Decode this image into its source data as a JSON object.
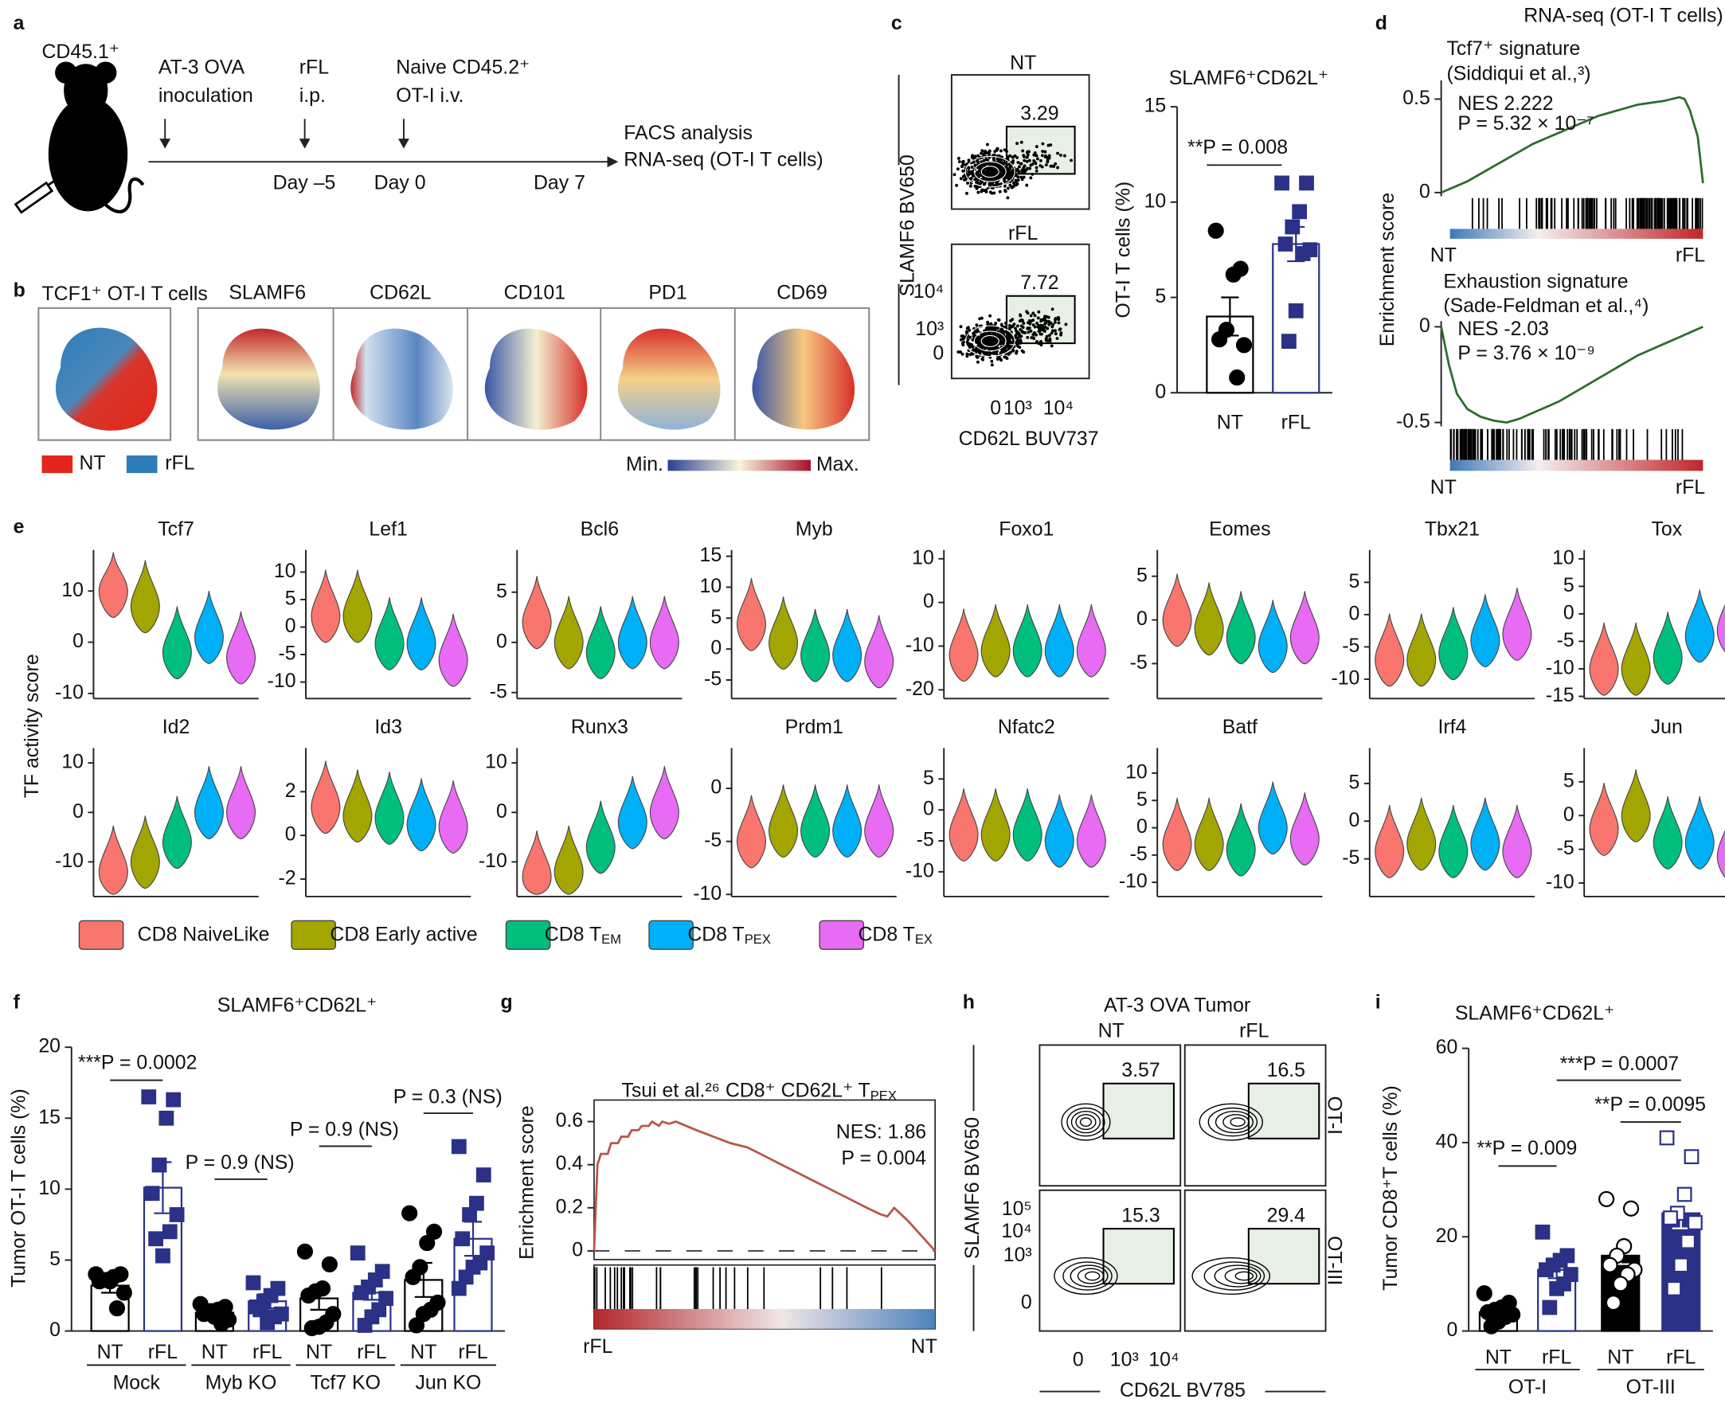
{
  "figure": {
    "panel_labels": [
      "a",
      "b",
      "c",
      "d",
      "e",
      "f",
      "g",
      "h",
      "i"
    ],
    "schematic": {
      "mouse": "CD45.1⁺",
      "steps": [
        [
          "AT-3 OVA",
          "inoculation"
        ],
        [
          "rFL",
          "i.p."
        ],
        [
          "Naive CD45.2⁺",
          "OT-I i.v."
        ]
      ],
      "days": [
        "Day –5",
        "Day 0",
        "Day 7"
      ],
      "readout": [
        "FACS analysis",
        "RNA-seq (OT-I T cells)"
      ]
    },
    "umap": {
      "title": "TCF1⁺ OT-I T cells",
      "markers": [
        "SLAMF6",
        "CD62L",
        "CD101",
        "PD1",
        "CD69"
      ],
      "legend": [
        {
          "name": "NT",
          "color": "#e3261c"
        },
        {
          "name": "rFL",
          "color": "#2f7db8"
        }
      ],
      "scale": [
        "Min.",
        "Max."
      ]
    },
    "flow_c": {
      "conditions": [
        "NT",
        "rFL"
      ],
      "gates": [
        3.29,
        7.72
      ],
      "ylabel": "SLAMF6 BV650",
      "xlabel": "CD62L BUV737",
      "yticks": [
        "10⁴",
        "10³",
        "0"
      ],
      "xticks": [
        "0",
        "10³",
        "10⁴"
      ]
    },
    "gsea_d": {
      "title": "RNA-seq (OT-I T cells)",
      "ylabel": "Enrichment score"
    },
    "flow_h": {
      "title": "AT-3 OVA Tumor",
      "conditions": [
        "NT",
        "rFL"
      ],
      "rows": [
        "OT-I",
        "OT-III"
      ],
      "gates": [
        [
          3.57,
          16.5
        ],
        [
          15.3,
          29.4
        ]
      ],
      "ylabel": "SLAMF6 BV650",
      "xlabel": "CD62L BV785",
      "yticks": [
        "10⁵",
        "10⁴",
        "10³",
        "0"
      ],
      "xticks": [
        "0",
        "10³",
        "10⁴"
      ]
    }
  },
  "chart_data": [
    {
      "type": "bar",
      "title": "SLAMF6⁺CD62L⁺",
      "ylabel": "OT-I T cells (%)",
      "categories": [
        "NT",
        "rFL"
      ],
      "values": [
        4,
        7.8
      ],
      "errors": [
        1,
        0.9
      ],
      "points": [
        [
          8.5,
          6.5,
          6.2,
          3.3,
          2.8,
          2.5,
          0.8
        ],
        [
          11,
          11,
          9.5,
          8.7,
          7.8,
          7.5,
          7.3,
          4.3,
          2.7
        ]
      ],
      "bar_colors": [
        "#ffffff",
        "#ffffff"
      ],
      "edge_colors": [
        "#000000",
        "#2b3187"
      ],
      "point_colors": [
        "#000000",
        "#2b3187"
      ],
      "markers": [
        "circle",
        "square"
      ],
      "annotations": [
        "**P = 0.008"
      ],
      "ylim": [
        0,
        15
      ],
      "yticks": [
        0,
        5,
        10,
        15
      ]
    },
    {
      "type": "line",
      "subtitle": [
        "Tcf7⁺ signature",
        "(Siddiqui et al.,³)"
      ],
      "stats": [
        "NES 2.222",
        "P = 5.32 × 10⁻⁷"
      ],
      "x": [
        0,
        5,
        10,
        15,
        20,
        25,
        30,
        35,
        40,
        45,
        50,
        55,
        60,
        65,
        70,
        75,
        80,
        85,
        88,
        91,
        93,
        95,
        98,
        100
      ],
      "values": [
        0,
        0.03,
        0.06,
        0.1,
        0.14,
        0.18,
        0.22,
        0.26,
        0.29,
        0.32,
        0.35,
        0.38,
        0.41,
        0.43,
        0.45,
        0.47,
        0.48,
        0.49,
        0.5,
        0.51,
        0.5,
        0.44,
        0.3,
        0.05
      ],
      "color": "#2e6b2e",
      "xlim": [
        0,
        100
      ],
      "ylim": [
        -0.02,
        0.6
      ],
      "yticks": [
        0,
        0.5
      ],
      "x_labels": [
        "NT",
        "rFL"
      ]
    },
    {
      "type": "line",
      "subtitle": [
        "Exhaustion signature",
        "(Sade-Feldman et al.,⁴)"
      ],
      "stats": [
        "NES -2.03",
        "P = 3.76 × 10⁻⁹"
      ],
      "x": [
        0,
        3,
        6,
        10,
        15,
        20,
        25,
        30,
        35,
        40,
        45,
        50,
        55,
        60,
        65,
        70,
        75,
        80,
        85,
        90,
        95,
        100
      ],
      "values": [
        0,
        -0.2,
        -0.35,
        -0.43,
        -0.47,
        -0.49,
        -0.5,
        -0.48,
        -0.45,
        -0.42,
        -0.39,
        -0.35,
        -0.31,
        -0.27,
        -0.23,
        -0.19,
        -0.15,
        -0.12,
        -0.09,
        -0.06,
        -0.03,
        0
      ],
      "color": "#2e6b2e",
      "xlim": [
        0,
        100
      ],
      "ylim": [
        -0.52,
        0.03
      ],
      "yticks": [
        -0.5,
        0
      ],
      "x_labels": [
        "NT",
        "rFL"
      ]
    },
    {
      "type": "violin",
      "ylabel": "TF activity score",
      "categories": [
        {
          "text": "CD8 NaiveLike"
        },
        {
          "text": "CD8 Early active"
        },
        {
          "text": "CD8 T",
          "sub": "EM"
        },
        {
          "text": "CD8 T",
          "sub": "PEX"
        },
        {
          "text": "CD8 T",
          "sub": "EX"
        }
      ],
      "colors": [
        "#f8766d",
        "#a3a500",
        "#00bf7d",
        "#00b0f6",
        "#e76bf3"
      ],
      "panels": [
        {
          "title": "Tcf7",
          "ylim": [
            -11,
            18
          ],
          "yticks": [
            -10,
            0,
            10
          ],
          "values": [
            10,
            7,
            -2,
            1,
            -3
          ]
        },
        {
          "title": "Lef1",
          "ylim": [
            -13,
            14
          ],
          "yticks": [
            -10,
            -5,
            0,
            5,
            10
          ],
          "values": [
            2,
            2,
            -3,
            -3,
            -6
          ]
        },
        {
          "title": "Bcl6",
          "ylim": [
            -5.6,
            9.2
          ],
          "yticks": [
            -5,
            0,
            5
          ],
          "values": [
            2,
            0,
            -1,
            0,
            0
          ]
        },
        {
          "title": "Myb",
          "ylim": [
            -8,
            16
          ],
          "yticks": [
            -5,
            0,
            5,
            10,
            15
          ],
          "values": [
            4,
            1,
            -1,
            -1,
            -2
          ]
        },
        {
          "title": "Foxo1",
          "ylim": [
            -22,
            12
          ],
          "yticks": [
            -20,
            -10,
            0,
            10
          ],
          "values": [
            -12,
            -11,
            -11,
            -11,
            -11
          ]
        },
        {
          "title": "Eomes",
          "ylim": [
            -9,
            8
          ],
          "yticks": [
            -5,
            0,
            5
          ],
          "values": [
            0,
            -1,
            -2,
            -3,
            -2
          ]
        },
        {
          "title": "Tbx21",
          "ylim": [
            -13,
            10
          ],
          "yticks": [
            -10,
            -5,
            0,
            5
          ],
          "values": [
            -7,
            -7,
            -6,
            -4,
            -3
          ]
        },
        {
          "title": "Tox",
          "ylim": [
            -15.4,
            11.6
          ],
          "yticks": [
            -15,
            -10,
            -5,
            0,
            5,
            10
          ],
          "values": [
            -10,
            -10,
            -8,
            -4,
            -3
          ]
        },
        {
          "title": "Id2",
          "ylim": [
            -17,
            13
          ],
          "yticks": [
            -10,
            0,
            10
          ],
          "values": [
            -12,
            -10,
            -6,
            0,
            0
          ]
        },
        {
          "title": "Id3",
          "ylim": [
            -2.8,
            4
          ],
          "yticks": [
            -2,
            0,
            2
          ],
          "values": [
            1.3,
            0.9,
            0.8,
            0.5,
            0.4
          ]
        },
        {
          "title": "Runx3",
          "ylim": [
            -17,
            13
          ],
          "yticks": [
            -10,
            0,
            10
          ],
          "values": [
            -13,
            -12,
            -7,
            -2,
            0
          ]
        },
        {
          "title": "Prdm1",
          "ylim": [
            -10.2,
            3.8
          ],
          "yticks": [
            -10,
            -5,
            0
          ],
          "values": [
            -5,
            -4,
            -4,
            -4,
            -4
          ]
        },
        {
          "title": "Nfatc2",
          "ylim": [
            -14,
            10
          ],
          "yticks": [
            -10,
            -5,
            0,
            5
          ],
          "values": [
            -4,
            -4,
            -4,
            -5,
            -5
          ]
        },
        {
          "title": "Batf",
          "ylim": [
            -12.6,
            14.6
          ],
          "yticks": [
            -10,
            -5,
            0,
            5,
            10
          ],
          "values": [
            -3,
            -3,
            -4,
            0,
            -2
          ]
        },
        {
          "title": "Irf4",
          "ylim": [
            -10,
            9.7
          ],
          "yticks": [
            -5,
            0,
            5
          ],
          "values": [
            -4,
            -3,
            -4,
            -3,
            -4
          ]
        },
        {
          "title": "Jun",
          "ylim": [
            -12,
            10
          ],
          "yticks": [
            -10,
            -5,
            0,
            5
          ],
          "values": [
            -2,
            0,
            -4,
            -4,
            -6
          ]
        }
      ]
    },
    {
      "type": "bar",
      "title": "SLAMF6⁺CD62L⁺",
      "ylabel": "Tumor OT-I T cells (%)",
      "categories": [
        "NT",
        "rFL",
        "NT",
        "rFL",
        "NT",
        "rFL",
        "NT",
        "rFL"
      ],
      "groups": [
        "Mock",
        "Myb KO",
        "Tcf7 KO",
        "Jun KO"
      ],
      "values": [
        3.2,
        10.1,
        1.3,
        2.1,
        2.3,
        2.7,
        3.6,
        6.5
      ],
      "errors": [
        0.5,
        1.8,
        0.3,
        0.5,
        0.8,
        0.5,
        1.2,
        1.2
      ],
      "points": [
        [
          4,
          4,
          3.8,
          3.6,
          3.5,
          2.7,
          1.6,
          3.5
        ],
        [
          16.5,
          16.3,
          15,
          11.7,
          9.7,
          8.2,
          7,
          5.3,
          6.5
        ],
        [
          1.9,
          1.7,
          1.5,
          1.4,
          1.2,
          0.8,
          0.5,
          1
        ],
        [
          3.4,
          3,
          2.5,
          2.1,
          1.7,
          1.2,
          1,
          0.6,
          1.5
        ],
        [
          5.6,
          4.7,
          3,
          2.8,
          2.5,
          1.2,
          0.6,
          0.3,
          0.2
        ],
        [
          5.5,
          4.2,
          3.6,
          3.1,
          2.7,
          2.3,
          1.5,
          1,
          0.4
        ],
        [
          8.3,
          7,
          6.2,
          4.5,
          3.8,
          2,
          1.5,
          1.2,
          0.4
        ],
        [
          13,
          11,
          9,
          8.2,
          6.5,
          5.5,
          4.8,
          4.5,
          3.8,
          3
        ]
      ],
      "bar_colors": [
        "#ffffff",
        "#ffffff",
        "#ffffff",
        "#ffffff",
        "#ffffff",
        "#ffffff",
        "#ffffff",
        "#ffffff"
      ],
      "edge_colors": [
        "#000000",
        "#2b3187",
        "#000000",
        "#2b3187",
        "#000000",
        "#2b3187",
        "#000000",
        "#2b3187"
      ],
      "point_colors": [
        "#000000",
        "#2b3187",
        "#000000",
        "#2b3187",
        "#000000",
        "#2b3187",
        "#000000",
        "#2b3187"
      ],
      "markers": [
        "circle",
        "square",
        "circle",
        "square",
        "circle",
        "square",
        "circle",
        "square"
      ],
      "annotations": [
        "***P = 0.0002",
        "P = 0.9 (NS)",
        "P = 0.9 (NS)",
        "P = 0.3 (NS)"
      ],
      "ylim": [
        0,
        20
      ],
      "yticks": [
        0,
        5,
        10,
        15,
        20
      ]
    },
    {
      "type": "line",
      "title": {
        "text": "Tsui et al.²⁶ CD8⁺ CD62L⁺ T",
        "sub": "PEX"
      },
      "ylabel": "Enrichment score",
      "stats": [
        "NES: 1.86",
        "P = 0.004"
      ],
      "x": [
        0,
        1,
        2,
        4,
        5,
        7,
        8,
        10,
        11,
        13,
        14,
        16,
        17,
        19,
        20,
        22,
        24,
        27,
        30,
        35,
        40,
        45,
        50,
        55,
        60,
        65,
        70,
        75,
        80,
        84,
        86,
        88,
        92,
        96,
        100
      ],
      "values": [
        0,
        0.4,
        0.45,
        0.45,
        0.5,
        0.5,
        0.53,
        0.53,
        0.56,
        0.56,
        0.58,
        0.58,
        0.6,
        0.58,
        0.6,
        0.59,
        0.6,
        0.58,
        0.56,
        0.53,
        0.5,
        0.48,
        0.44,
        0.4,
        0.36,
        0.32,
        0.28,
        0.24,
        0.2,
        0.17,
        0.16,
        0.2,
        0.14,
        0.07,
        0
      ],
      "color": "#b5574a",
      "xlim": [
        0,
        100
      ],
      "ylim": [
        -0.04,
        0.7
      ],
      "yticks": [
        0,
        0.2,
        0.4,
        0.6
      ],
      "zero_line": true,
      "x_labels": [
        "rFL",
        "NT"
      ]
    },
    {
      "type": "bar",
      "title": "SLAMF6⁺CD62L⁺",
      "ylabel": "Tumor CD8⁺T cells (%)",
      "categories": [
        "NT",
        "rFL",
        "NT",
        "rFL"
      ],
      "groups": [
        "OT-I",
        "OT-III"
      ],
      "values": [
        4,
        13,
        16,
        25
      ],
      "errors": [
        1,
        1.8,
        1.8,
        3.2
      ],
      "points": [
        [
          8,
          6,
          5,
          4.5,
          4,
          3.5,
          3,
          2,
          1
        ],
        [
          21,
          16,
          15,
          14,
          13,
          12,
          10,
          9,
          5
        ],
        [
          28,
          26,
          18,
          16,
          14,
          13,
          12,
          10,
          6
        ],
        [
          41,
          37,
          29,
          25,
          24,
          23,
          19,
          14,
          9
        ]
      ],
      "bar_colors": [
        "#ffffff",
        "#ffffff",
        "#000000",
        "#2b3187"
      ],
      "edge_colors": [
        "#000000",
        "#2b3187",
        "#000000",
        "#2b3187"
      ],
      "point_colors": [
        "#000000",
        "#2b3187",
        "#ffffff",
        "#ffffff"
      ],
      "markers": [
        "circle",
        "square",
        "circle",
        "square"
      ],
      "annotations": [
        "**P = 0.009",
        "***P = 0.0007",
        "**P = 0.0095"
      ],
      "ylim": [
        0,
        60
      ],
      "yticks": [
        0,
        20,
        40,
        60
      ]
    }
  ]
}
